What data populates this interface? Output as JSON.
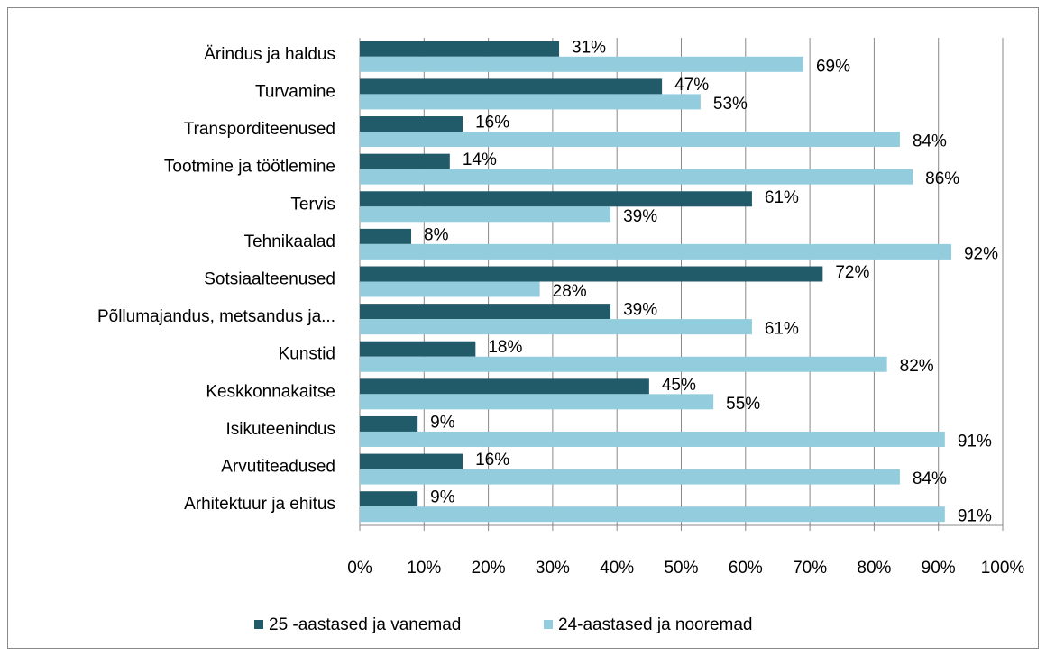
{
  "chart_data": {
    "type": "bar",
    "orientation": "horizontal",
    "categories": [
      "Ärindus ja haldus",
      "Turvamine",
      "Transporditeenused",
      "Tootmine ja töötlemine",
      "Tervis",
      "Tehnikaalad",
      "Sotsiaalteenused",
      "Põllumajandus, metsandus ja...",
      "Kunstid",
      "Keskkonnakaitse",
      "Isikuteenindus",
      "Arvutiteadused",
      "Arhitektuur ja ehitus"
    ],
    "series": [
      {
        "name": "25 -aastased ja vanemad",
        "color": "#215a69",
        "values": [
          31,
          47,
          16,
          14,
          61,
          8,
          72,
          39,
          18,
          45,
          9,
          16,
          9
        ],
        "value_labels": [
          "31%",
          "47%",
          "16%",
          "14%",
          "61%",
          "8%",
          "72%",
          "39%",
          "18%",
          "45%",
          "9%",
          "16%",
          "9%"
        ]
      },
      {
        "name": "24-aastased ja nooremad",
        "color": "#93cddd",
        "values": [
          69,
          53,
          84,
          86,
          39,
          92,
          28,
          61,
          82,
          55,
          91,
          84,
          91
        ],
        "value_labels": [
          "69%",
          "53%",
          "84%",
          "86%",
          "39%",
          "92%",
          "28%",
          "61%",
          "82%",
          "55%",
          "91%",
          "84%",
          "91%"
        ]
      }
    ],
    "xlim": [
      0,
      100
    ],
    "xticks": [
      {
        "value": 0,
        "label": "0%"
      },
      {
        "value": 10,
        "label": "10%"
      },
      {
        "value": 20,
        "label": "20%"
      },
      {
        "value": 30,
        "label": "30%"
      },
      {
        "value": 40,
        "label": "40%"
      },
      {
        "value": 50,
        "label": "50%"
      },
      {
        "value": 60,
        "label": "60%"
      },
      {
        "value": 70,
        "label": "70%"
      },
      {
        "value": 80,
        "label": "80%"
      },
      {
        "value": 90,
        "label": "90%"
      },
      {
        "value": 100,
        "label": "100%"
      }
    ],
    "grid": true,
    "legend": "bottom"
  }
}
